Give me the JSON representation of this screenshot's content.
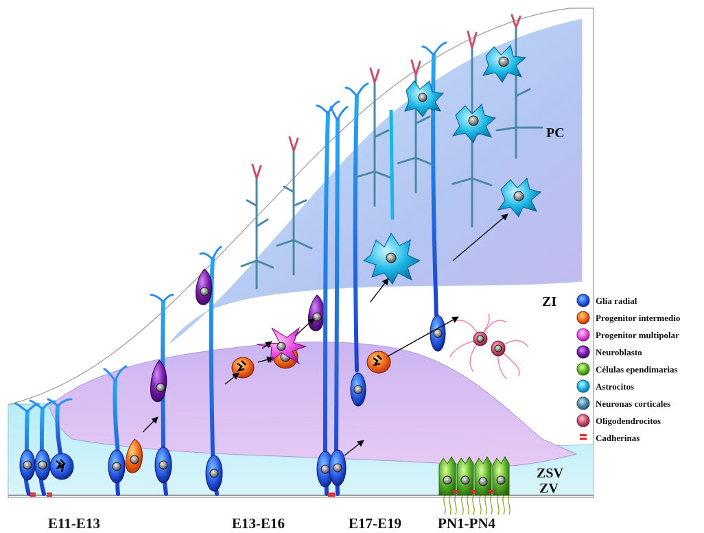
{
  "zones": {
    "pc": "PC",
    "zi": "ZI",
    "zsv": "ZSV",
    "zv": "ZV"
  },
  "stages": [
    "E11-E13",
    "E13-E16",
    "E17-E19",
    "PN1-PN4"
  ],
  "legend": [
    {
      "label": "Glia radial",
      "color": "#1c3fd6",
      "icon": "radial-glia-icon"
    },
    {
      "label": "Progenitor intermedio",
      "color": "#f26a1b",
      "icon": "intermediate-progenitor-icon"
    },
    {
      "label": "Progenitor multipolar",
      "color": "#e84de0",
      "icon": "multipolar-progenitor-icon"
    },
    {
      "label": "Neuroblasto",
      "color": "#7a1ea8",
      "icon": "neuroblast-icon"
    },
    {
      "label": "Células ependimarias",
      "color": "#5cb82a",
      "icon": "ependymal-cell-icon"
    },
    {
      "label": "Astrocitos",
      "color": "#19b6e6",
      "icon": "astrocyte-icon"
    },
    {
      "label": "Neuronas corticales",
      "color": "#4a8aa8",
      "icon": "cortical-neuron-icon"
    },
    {
      "label": "Oligodendrocitos",
      "color": "#c8506a",
      "icon": "oligodendrocyte-icon"
    },
    {
      "label": "Cadherinas",
      "color": "#e0262b",
      "icon": "cadherin-icon"
    }
  ]
}
